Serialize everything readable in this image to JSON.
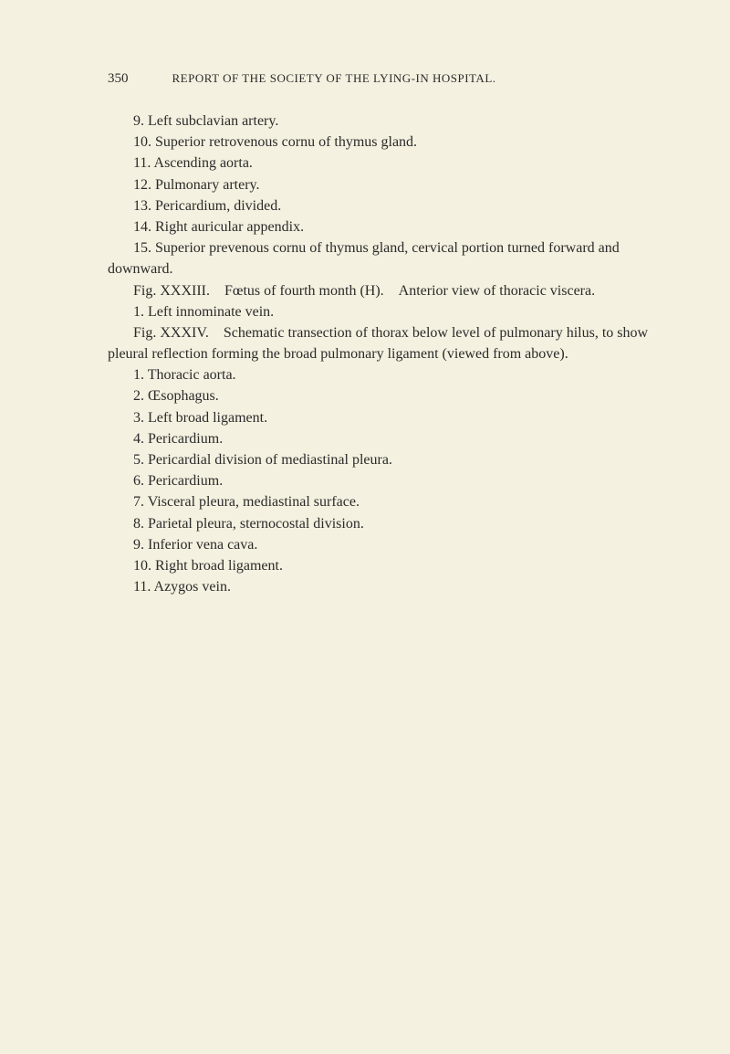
{
  "header": {
    "page_number": "350",
    "title": "REPORT OF THE SOCIETY OF THE LYING-IN HOSPITAL."
  },
  "lines": [
    {
      "text": "9. Left subclavian artery.",
      "cls": "item"
    },
    {
      "text": "10. Superior retrovenous cornu of thymus gland.",
      "cls": "item"
    },
    {
      "text": "11. Ascending aorta.",
      "cls": "item"
    },
    {
      "text": "12. Pulmonary artery.",
      "cls": "item"
    },
    {
      "text": "13. Pericardium, divided.",
      "cls": "item"
    },
    {
      "text": "14. Right auricular appendix.",
      "cls": "item"
    },
    {
      "text": "15. Superior prevenous cornu of thymus gland, cervical portion turned forward and downward.",
      "cls": "para"
    },
    {
      "text": "Fig. XXXIII. Fœtus of fourth month (H). Anterior view of thoracic viscera.",
      "cls": "para"
    },
    {
      "text": "1. Left innominate vein.",
      "cls": "item"
    },
    {
      "text": "Fig. XXXIV. Schematic transection of thorax below level of pulmonary hilus, to show pleural reflection forming the broad pulmonary ligament (viewed from above).",
      "cls": "para"
    },
    {
      "text": "1. Thoracic aorta.",
      "cls": "item"
    },
    {
      "text": "2. Œsophagus.",
      "cls": "item"
    },
    {
      "text": "3. Left broad ligament.",
      "cls": "item"
    },
    {
      "text": "4. Pericardium.",
      "cls": "item"
    },
    {
      "text": "5. Pericardial division of mediastinal pleura.",
      "cls": "item"
    },
    {
      "text": "6. Pericardium.",
      "cls": "item"
    },
    {
      "text": "7. Visceral pleura, mediastinal surface.",
      "cls": "item"
    },
    {
      "text": "8. Parietal pleura, sternocostal division.",
      "cls": "item"
    },
    {
      "text": "9. Inferior vena cava.",
      "cls": "item"
    },
    {
      "text": "10. Right broad ligament.",
      "cls": "item"
    },
    {
      "text": "11. Azygos vein.",
      "cls": "item"
    }
  ]
}
